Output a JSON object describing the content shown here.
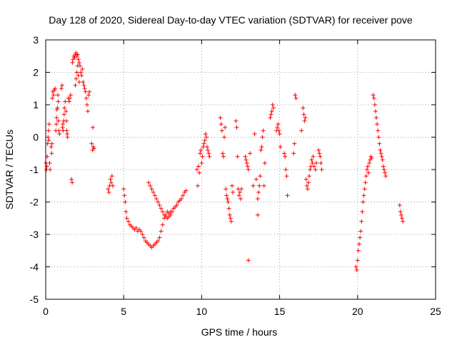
{
  "chart_data": {
    "type": "scatter",
    "title": "Day 128 of 2020, Sidereal Day-to-day VTEC variation (SDTVAR) for receiver pove",
    "xlabel": "GPS time / hours",
    "ylabel": "SDTVAR / TECUs",
    "xlim": [
      0,
      25
    ],
    "ylim": [
      -5,
      3
    ],
    "xticks": [
      0,
      5,
      10,
      15,
      20,
      25
    ],
    "yticks": [
      -5,
      -4,
      -3,
      -2,
      -1,
      0,
      1,
      2,
      3
    ],
    "grid": true,
    "marker": "plus",
    "color": "#ff0000",
    "series": [
      {
        "name": "pove",
        "points": [
          [
            0.02,
            -0.8
          ],
          [
            0.05,
            -1.0
          ],
          [
            0.08,
            -0.9
          ],
          [
            0.1,
            -0.6
          ],
          [
            0.12,
            -0.2
          ],
          [
            0.15,
            0.0
          ],
          [
            0.18,
            0.2
          ],
          [
            0.2,
            -0.1
          ],
          [
            0.22,
            0.4
          ],
          [
            0.25,
            -0.8
          ],
          [
            0.28,
            -1.0
          ],
          [
            0.35,
            -0.3
          ],
          [
            0.38,
            -0.5
          ],
          [
            0.4,
            -0.2
          ],
          [
            0.42,
            1.2
          ],
          [
            0.45,
            1.4
          ],
          [
            0.5,
            1.3
          ],
          [
            0.55,
            1.45
          ],
          [
            0.6,
            1.5
          ],
          [
            0.65,
            0.2
          ],
          [
            0.68,
            0.4
          ],
          [
            0.7,
            0.6
          ],
          [
            0.72,
            0.85
          ],
          [
            0.75,
            0.9
          ],
          [
            0.78,
            1.3
          ],
          [
            0.8,
            1.1
          ],
          [
            0.82,
            0.5
          ],
          [
            0.85,
            0.2
          ],
          [
            0.88,
            0.1
          ],
          [
            1.0,
            1.5
          ],
          [
            1.05,
            1.6
          ],
          [
            1.08,
            0.3
          ],
          [
            1.1,
            0.4
          ],
          [
            1.12,
            0.2
          ],
          [
            1.15,
            0.5
          ],
          [
            1.18,
            0.7
          ],
          [
            1.2,
            0.9
          ],
          [
            1.25,
            1.1
          ],
          [
            1.3,
            0.8
          ],
          [
            1.33,
            0.5
          ],
          [
            1.35,
            0.2
          ],
          [
            1.38,
            0.1
          ],
          [
            1.4,
            0.0
          ],
          [
            1.45,
            1.2
          ],
          [
            1.5,
            1.1
          ],
          [
            1.55,
            1.2
          ],
          [
            1.6,
            1.3
          ],
          [
            1.65,
            -1.3
          ],
          [
            1.7,
            -1.4
          ],
          [
            1.72,
            2.3
          ],
          [
            1.75,
            2.4
          ],
          [
            1.8,
            2.5
          ],
          [
            1.85,
            2.45
          ],
          [
            1.9,
            2.55
          ],
          [
            1.95,
            2.6
          ],
          [
            2.0,
            2.5
          ],
          [
            2.05,
            2.55
          ],
          [
            2.1,
            2.4
          ],
          [
            2.15,
            2.3
          ],
          [
            2.2,
            2.2
          ],
          [
            2.25,
            2.0
          ],
          [
            2.3,
            1.9
          ],
          [
            2.35,
            2.1
          ],
          [
            2.4,
            1.7
          ],
          [
            2.45,
            1.6
          ],
          [
            2.5,
            1.5
          ],
          [
            2.55,
            1.4
          ],
          [
            2.6,
            1.2
          ],
          [
            2.65,
            1.0
          ],
          [
            2.7,
            0.8
          ],
          [
            2.75,
            1.3
          ],
          [
            2.8,
            1.4
          ],
          [
            1.9,
            1.6
          ],
          [
            1.95,
            1.8
          ],
          [
            2.0,
            2.0
          ],
          [
            2.05,
            2.2
          ],
          [
            2.1,
            1.9
          ],
          [
            2.15,
            1.7
          ],
          [
            2.95,
            -0.2
          ],
          [
            3.0,
            -0.4
          ],
          [
            3.02,
            0.3
          ],
          [
            3.05,
            -0.3
          ],
          [
            3.1,
            -0.35
          ],
          [
            4.0,
            -1.6
          ],
          [
            4.05,
            -1.7
          ],
          [
            4.1,
            -1.5
          ],
          [
            4.15,
            -1.3
          ],
          [
            4.2,
            -1.4
          ],
          [
            4.25,
            -1.2
          ],
          [
            4.3,
            -1.5
          ],
          [
            5.0,
            -1.6
          ],
          [
            5.05,
            -1.8
          ],
          [
            5.1,
            -2.0
          ],
          [
            5.15,
            -2.3
          ],
          [
            5.2,
            -2.5
          ],
          [
            5.3,
            -2.6
          ],
          [
            5.4,
            -2.7
          ],
          [
            5.5,
            -2.75
          ],
          [
            5.6,
            -2.8
          ],
          [
            5.7,
            -2.85
          ],
          [
            5.8,
            -2.8
          ],
          [
            5.9,
            -2.9
          ],
          [
            6.0,
            -2.85
          ],
          [
            6.1,
            -2.9
          ],
          [
            6.2,
            -3.0
          ],
          [
            6.3,
            -3.1
          ],
          [
            6.4,
            -3.2
          ],
          [
            6.5,
            -3.25
          ],
          [
            6.6,
            -3.3
          ],
          [
            6.7,
            -3.35
          ],
          [
            6.8,
            -3.4
          ],
          [
            6.9,
            -3.35
          ],
          [
            7.0,
            -3.3
          ],
          [
            7.1,
            -3.25
          ],
          [
            7.2,
            -3.2
          ],
          [
            7.3,
            -3.1
          ],
          [
            7.4,
            -2.9
          ],
          [
            7.5,
            -2.7
          ],
          [
            7.6,
            -2.5
          ],
          [
            7.7,
            -2.4
          ],
          [
            7.8,
            -2.3
          ],
          [
            7.9,
            -2.35
          ],
          [
            8.0,
            -2.3
          ],
          [
            6.6,
            -1.4
          ],
          [
            6.7,
            -1.5
          ],
          [
            6.8,
            -1.6
          ],
          [
            6.9,
            -1.7
          ],
          [
            7.0,
            -1.8
          ],
          [
            7.1,
            -1.9
          ],
          [
            7.2,
            -2.0
          ],
          [
            7.3,
            -2.1
          ],
          [
            7.4,
            -2.2
          ],
          [
            7.5,
            -2.3
          ],
          [
            7.6,
            -2.4
          ],
          [
            7.7,
            -2.45
          ],
          [
            7.8,
            -2.5
          ],
          [
            7.9,
            -2.45
          ],
          [
            8.0,
            -2.4
          ],
          [
            8.1,
            -2.3
          ],
          [
            8.2,
            -2.2
          ],
          [
            8.3,
            -2.15
          ],
          [
            8.4,
            -2.1
          ],
          [
            8.5,
            -2.0
          ],
          [
            8.6,
            -1.95
          ],
          [
            8.7,
            -1.9
          ],
          [
            8.8,
            -1.8
          ],
          [
            8.9,
            -1.7
          ],
          [
            9.0,
            -1.65
          ],
          [
            9.7,
            -1.0
          ],
          [
            9.75,
            -1.5
          ],
          [
            9.8,
            -0.9
          ],
          [
            9.85,
            -1.1
          ],
          [
            9.9,
            -0.5
          ],
          [
            9.95,
            -0.4
          ],
          [
            10.0,
            -0.8
          ],
          [
            10.05,
            -0.6
          ],
          [
            10.1,
            -0.3
          ],
          [
            10.15,
            -0.2
          ],
          [
            10.2,
            -0.1
          ],
          [
            10.25,
            0.1
          ],
          [
            10.3,
            0.0
          ],
          [
            10.35,
            -0.3
          ],
          [
            10.4,
            -0.4
          ],
          [
            10.45,
            -0.5
          ],
          [
            10.5,
            -0.6
          ],
          [
            11.2,
            0.6
          ],
          [
            11.25,
            0.4
          ],
          [
            11.3,
            0.2
          ],
          [
            11.35,
            -0.5
          ],
          [
            11.4,
            -0.6
          ],
          [
            11.45,
            0.0
          ],
          [
            11.5,
            0.3
          ],
          [
            11.55,
            -1.6
          ],
          [
            11.6,
            -1.8
          ],
          [
            11.65,
            -1.9
          ],
          [
            11.7,
            -2.0
          ],
          [
            11.75,
            -2.2
          ],
          [
            11.8,
            -2.4
          ],
          [
            11.85,
            -2.5
          ],
          [
            11.9,
            -2.6
          ],
          [
            11.95,
            -1.5
          ],
          [
            12.0,
            -1.7
          ],
          [
            12.2,
            0.5
          ],
          [
            12.25,
            0.3
          ],
          [
            12.3,
            -0.6
          ],
          [
            12.35,
            -1.6
          ],
          [
            12.4,
            -1.8
          ],
          [
            12.45,
            -1.7
          ],
          [
            12.5,
            -1.9
          ],
          [
            12.55,
            -1.6
          ],
          [
            12.8,
            -0.6
          ],
          [
            12.85,
            -0.7
          ],
          [
            12.9,
            -0.8
          ],
          [
            12.95,
            -0.9
          ],
          [
            13.0,
            -1.0
          ],
          [
            13.0,
            -3.8
          ],
          [
            13.1,
            -0.5
          ],
          [
            13.3,
            -1.5
          ],
          [
            13.4,
            0.1
          ],
          [
            13.5,
            -1.3
          ],
          [
            13.6,
            -1.9
          ],
          [
            13.65,
            -1.7
          ],
          [
            13.7,
            -1.5
          ],
          [
            13.75,
            -1.2
          ],
          [
            13.6,
            -2.4
          ],
          [
            13.8,
            -0.4
          ],
          [
            13.85,
            -0.3
          ],
          [
            13.9,
            0.0
          ],
          [
            13.95,
            0.2
          ],
          [
            14.0,
            -1.5
          ],
          [
            14.05,
            -0.8
          ],
          [
            14.4,
            0.6
          ],
          [
            14.45,
            0.7
          ],
          [
            14.5,
            0.8
          ],
          [
            14.55,
            1.0
          ],
          [
            14.6,
            0.9
          ],
          [
            14.8,
            0.2
          ],
          [
            14.85,
            0.3
          ],
          [
            14.9,
            0.4
          ],
          [
            14.95,
            0.2
          ],
          [
            15.0,
            0.1
          ],
          [
            15.05,
            -0.3
          ],
          [
            15.3,
            -0.5
          ],
          [
            15.35,
            -0.6
          ],
          [
            15.4,
            -1.0
          ],
          [
            15.45,
            -1.2
          ],
          [
            15.5,
            -1.8
          ],
          [
            15.9,
            -0.5
          ],
          [
            15.95,
            -0.2
          ],
          [
            16.0,
            1.3
          ],
          [
            16.05,
            1.2
          ],
          [
            16.4,
            0.2
          ],
          [
            16.5,
            0.9
          ],
          [
            16.55,
            0.7
          ],
          [
            16.6,
            0.5
          ],
          [
            16.65,
            0.6
          ],
          [
            16.7,
            -1.3
          ],
          [
            16.75,
            -1.5
          ],
          [
            16.8,
            -1.6
          ],
          [
            16.85,
            -1.4
          ],
          [
            16.9,
            -1.2
          ],
          [
            16.95,
            -1.0
          ],
          [
            17.0,
            -0.9
          ],
          [
            17.05,
            -0.7
          ],
          [
            17.1,
            -0.8
          ],
          [
            17.15,
            -0.6
          ],
          [
            17.2,
            -0.9
          ],
          [
            17.3,
            -1.0
          ],
          [
            17.35,
            -0.8
          ],
          [
            17.5,
            -0.4
          ],
          [
            17.55,
            -0.5
          ],
          [
            17.6,
            -0.6
          ],
          [
            17.65,
            -0.8
          ],
          [
            17.7,
            -1.0
          ],
          [
            19.9,
            -4.0
          ],
          [
            19.95,
            -4.1
          ],
          [
            20.0,
            -3.8
          ],
          [
            20.05,
            -3.5
          ],
          [
            20.1,
            -3.3
          ],
          [
            20.15,
            -3.1
          ],
          [
            20.2,
            -2.9
          ],
          [
            20.25,
            -2.6
          ],
          [
            20.3,
            -2.3
          ],
          [
            20.35,
            -2.0
          ],
          [
            20.4,
            -1.8
          ],
          [
            20.45,
            -1.6
          ],
          [
            20.5,
            -1.4
          ],
          [
            20.55,
            -1.2
          ],
          [
            20.6,
            -1.0
          ],
          [
            20.65,
            -0.9
          ],
          [
            20.7,
            -1.1
          ],
          [
            20.75,
            -0.8
          ],
          [
            20.8,
            -0.7
          ],
          [
            20.85,
            -0.6
          ],
          [
            20.9,
            -0.65
          ],
          [
            21.0,
            1.3
          ],
          [
            21.05,
            1.2
          ],
          [
            21.1,
            1.0
          ],
          [
            21.15,
            0.8
          ],
          [
            21.2,
            0.6
          ],
          [
            21.25,
            0.4
          ],
          [
            21.3,
            0.2
          ],
          [
            21.35,
            0.0
          ],
          [
            21.4,
            -0.2
          ],
          [
            21.45,
            -0.4
          ],
          [
            21.5,
            -0.5
          ],
          [
            21.55,
            -0.6
          ],
          [
            21.6,
            -0.7
          ],
          [
            21.65,
            -0.9
          ],
          [
            21.7,
            -1.0
          ],
          [
            21.75,
            -1.1
          ],
          [
            21.8,
            -1.2
          ],
          [
            22.7,
            -2.1
          ],
          [
            22.75,
            -2.3
          ],
          [
            22.8,
            -2.4
          ],
          [
            22.85,
            -2.5
          ],
          [
            22.9,
            -2.6
          ]
        ]
      }
    ]
  }
}
